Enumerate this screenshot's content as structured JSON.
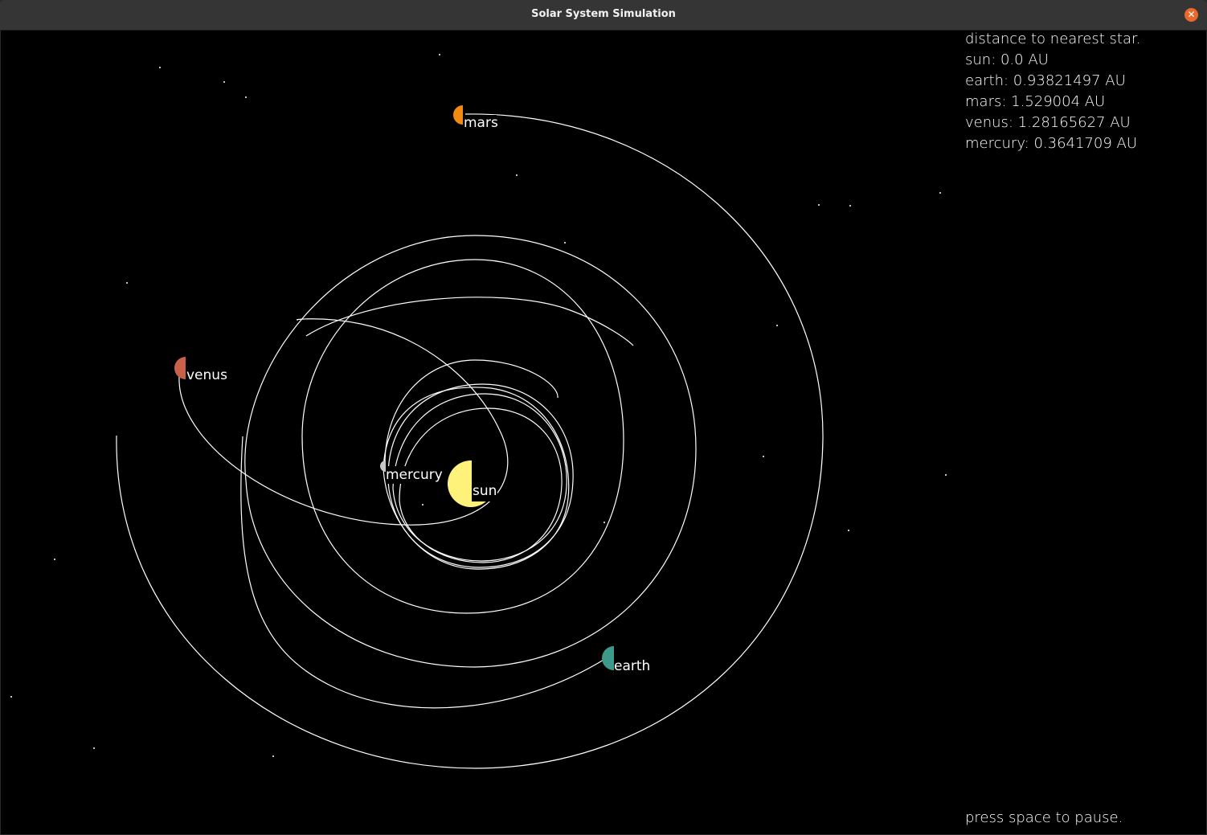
{
  "window": {
    "title": "Solar System Simulation",
    "close_icon": "close-icon",
    "close_color": "#e9692c"
  },
  "hud": {
    "heading": "distance to nearest star.",
    "distances": [
      {
        "name": "sun",
        "line": "sun: 0.0 AU"
      },
      {
        "name": "earth",
        "line": "earth: 0.93821497 AU"
      },
      {
        "name": "mars",
        "line": "mars: 1.529004 AU"
      },
      {
        "name": "venus",
        "line": "venus: 1.28165627 AU"
      },
      {
        "name": "mercury",
        "line": "mercury: 0.3641709 AU"
      }
    ],
    "pause_hint": "press space to pause."
  },
  "bodies": {
    "sun": {
      "label": "sun",
      "color": "#fff27a"
    },
    "mercury": {
      "label": "mercury",
      "color": "#c8c8c8"
    },
    "venus": {
      "label": "venus",
      "color": "#c8604a"
    },
    "earth": {
      "label": "earth",
      "color": "#3d9a8a"
    },
    "mars": {
      "label": "mars",
      "color": "#f08a12"
    }
  },
  "colors": {
    "background": "#000000",
    "orbit_trail": "#ffffff",
    "star": "#ffffff"
  }
}
